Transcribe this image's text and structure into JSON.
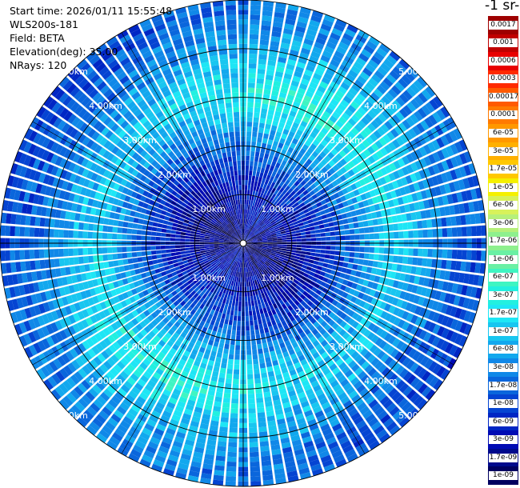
{
  "info": {
    "start_time": "Start time: 2026/01/11 15:55:48",
    "instrument": "WLS200s-181",
    "field": "Field: BETA",
    "elevation": "Elevation(deg): 35.00",
    "nrays": "NRays: 120"
  },
  "colorbar": {
    "unit_label": "-1 sr-",
    "labels": [
      "0.0017",
      "0.001",
      "0.0006",
      "0.0003",
      "0.00017",
      "0.0001",
      "6e-05",
      "3e-05",
      "1.7e-05",
      "1e-05",
      "6e-06",
      "3e-06",
      "1.7e-06",
      "1e-06",
      "6e-07",
      "3e-07",
      "1.7e-07",
      "1e-07",
      "6e-08",
      "3e-08",
      "1.7e-08",
      "1e-08",
      "6e-09",
      "3e-09",
      "1.7e-09",
      "1e-09"
    ],
    "colors": [
      "#9e0000",
      "#c00000",
      "#e80000",
      "#ff2a00",
      "#ff5a00",
      "#ff7a00",
      "#ff9800",
      "#ffb000",
      "#ffc800",
      "#f5f000",
      "#d8f25a",
      "#b6f07a",
      "#8ef08e",
      "#6af0a4",
      "#3ff5c2",
      "#22f0e0",
      "#1ee6f5",
      "#18c6f0",
      "#12a8ee",
      "#1088e8",
      "#0a66dc",
      "#0544d2",
      "#0026c4",
      "#000bb4",
      "#000a8c",
      "#000060"
    ]
  },
  "chart_data": {
    "type": "heatmap",
    "projection": "polar PPI scan",
    "field": "BETA",
    "elevation_deg": 35.0,
    "n_rays": 120,
    "range_rings_km": [
      1.0,
      2.0,
      3.0,
      4.0,
      5.0
    ],
    "ring_labels": [
      "1.00km",
      "2.00km",
      "3.00km",
      "4.00km",
      "5.00km"
    ],
    "max_range_km": 5.0,
    "color_scale": "log",
    "value_range": [
      1e-09,
      0.0017
    ],
    "radial_profile": [
      {
        "range_km": 0.5,
        "value": 2e-09
      },
      {
        "range_km": 1.0,
        "value": 3e-09
      },
      {
        "range_km": 1.5,
        "value": 6e-09
      },
      {
        "range_km": 2.0,
        "value": 1.7e-08
      },
      {
        "range_km": 2.5,
        "value": 6e-08
      },
      {
        "range_km": 3.0,
        "value": 1.7e-07
      },
      {
        "range_km": 3.5,
        "value": 1e-07
      },
      {
        "range_km": 4.0,
        "value": 4e-08
      },
      {
        "range_km": 4.5,
        "value": 2e-08
      },
      {
        "range_km": 5.0,
        "value": 1.5e-08
      }
    ]
  }
}
